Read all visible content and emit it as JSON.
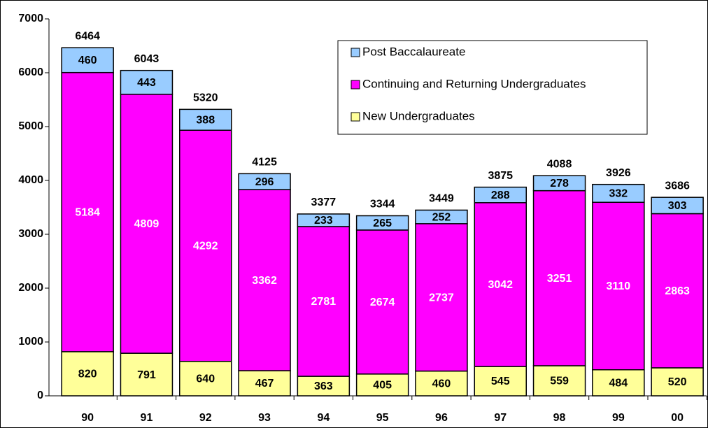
{
  "chart_data": {
    "type": "stacked_bar",
    "categories": [
      "90",
      "91",
      "92",
      "93",
      "94",
      "95",
      "96",
      "97",
      "98",
      "99",
      "00"
    ],
    "series": [
      {
        "name": "New Undergraduates",
        "color": "#ffff99",
        "label_color": "#000000",
        "values": [
          820,
          791,
          640,
          467,
          363,
          405,
          460,
          545,
          559,
          484,
          520
        ]
      },
      {
        "name": "Continuing and Returning Undergraduates",
        "color": "#ff00ff",
        "label_color": "#ffffff",
        "values": [
          5184,
          4809,
          4292,
          3362,
          2781,
          2674,
          2737,
          3042,
          3251,
          3110,
          2863
        ]
      },
      {
        "name": "Post Baccalaureate",
        "color": "#99ccff",
        "label_color": "#000000",
        "values": [
          460,
          443,
          388,
          296,
          233,
          265,
          252,
          288,
          278,
          332,
          303
        ]
      }
    ],
    "totals": [
      6464,
      6043,
      5320,
      4125,
      3377,
      3344,
      3449,
      3875,
      4088,
      3926,
      3686
    ],
    "ylim": [
      0,
      7000
    ],
    "yticks": [
      0,
      1000,
      2000,
      3000,
      4000,
      5000,
      6000,
      7000
    ],
    "grid": false,
    "legend": "top-right"
  }
}
